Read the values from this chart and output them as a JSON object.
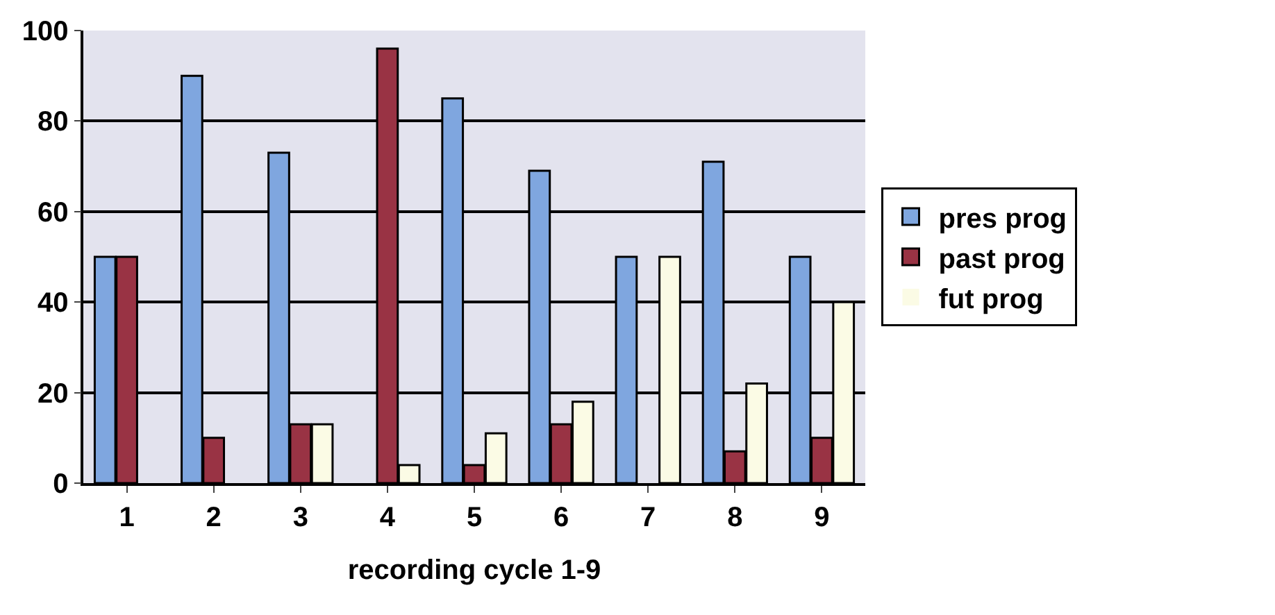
{
  "chart_data": {
    "type": "bar",
    "xlabel": "recording cycle 1-9",
    "categories": [
      "1",
      "2",
      "3",
      "4",
      "5",
      "6",
      "7",
      "8",
      "9"
    ],
    "series": [
      {
        "name": "pres prog",
        "color": "#7fa6df",
        "values": [
          50,
          90,
          73,
          0,
          85,
          69,
          50,
          71,
          50
        ]
      },
      {
        "name": "past prog",
        "color": "#993344",
        "values": [
          50,
          10,
          13,
          96,
          4,
          13,
          0,
          7,
          10
        ]
      },
      {
        "name": "fut prog",
        "color": "#fbfbe5",
        "values": [
          0,
          0,
          13,
          4,
          11,
          18,
          50,
          22,
          40
        ]
      }
    ],
    "ylim": [
      0,
      100
    ],
    "yticks": [
      0,
      20,
      40,
      60,
      80,
      100
    ],
    "grid": "y",
    "legend": "right"
  }
}
